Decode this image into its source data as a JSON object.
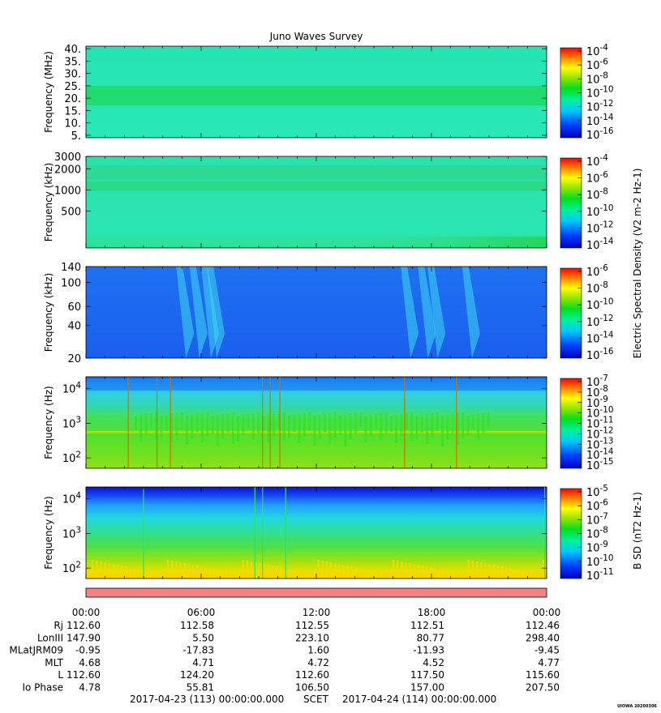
{
  "title": "Juno Waves Survey",
  "stamp": "UIOWA 20200306",
  "chart_data": [
    {
      "type": "heatmap",
      "panel": "MHz",
      "ylabel": "Frequency (MHz)",
      "yscale": "linear",
      "ylim": [
        4,
        41
      ],
      "yticks": [
        {
          "v": 5,
          "label": "5."
        },
        {
          "v": 10,
          "label": "10."
        },
        {
          "v": 15,
          "label": "15."
        },
        {
          "v": 20,
          "label": "20."
        },
        {
          "v": 25,
          "label": "25."
        },
        {
          "v": 30,
          "label": "30."
        },
        {
          "v": 35,
          "label": "35."
        },
        {
          "v": 40,
          "label": "40."
        }
      ],
      "xlim_hours": [
        0,
        24
      ],
      "colorbar": {
        "ticks": [
          "10-4",
          "10-6",
          "10-8",
          "10-10",
          "10-12",
          "10-14",
          "10-16"
        ],
        "exp_range": [
          -16.7,
          -3.8
        ],
        "label": ""
      },
      "base_color": "#25e6b0",
      "bands": [
        {
          "f": 21,
          "color": "#20d860",
          "width": 0.8
        }
      ],
      "spikes_hours": []
    },
    {
      "type": "heatmap",
      "panel": "kHz-high",
      "ylabel": "Frequency (kHz)",
      "yscale": "log",
      "ylim": [
        150,
        3000
      ],
      "yticks": [
        {
          "v": 500,
          "label": "500"
        },
        {
          "v": 1000,
          "label": "1000"
        },
        {
          "v": 2000,
          "label": "2000"
        },
        {
          "v": 3000,
          "label": "3000"
        }
      ],
      "xlim_hours": [
        0,
        24
      ],
      "colorbar": {
        "ticks": [
          "10-4",
          "10-6",
          "10-8",
          "10-10",
          "10-12",
          "10-14"
        ],
        "exp_range": [
          -15,
          -3.2
        ],
        "label": "Electric Spectral Density (V2 m-2 Hz-1)"
      },
      "base_color": "#28e6b2",
      "bands": [
        {
          "f": 2000,
          "color": "#2ed890",
          "width": 0.03
        },
        {
          "f": 1600,
          "color": "#2ed890",
          "width": 0.03
        },
        {
          "f": 1150,
          "color": "#28d880",
          "width": 0.04
        }
      ],
      "spikes_hours": []
    },
    {
      "type": "heatmap",
      "panel": "kHz-low",
      "ylabel": "Frequency (kHz)",
      "yscale": "log",
      "ylim": [
        20,
        140
      ],
      "yticks": [
        {
          "v": 20,
          "label": "20"
        },
        {
          "v": 40,
          "label": "40"
        },
        {
          "v": 60,
          "label": "60"
        },
        {
          "v": 100,
          "label": "100"
        },
        {
          "v": 140,
          "label": "140"
        }
      ],
      "xlim_hours": [
        0,
        24
      ],
      "colorbar": {
        "ticks": [
          "10-6",
          "10-8",
          "10-10",
          "10-12",
          "10-14",
          "10-16"
        ],
        "exp_range": [
          -16.7,
          -5.8
        ],
        "label": ""
      },
      "base_color": "#1e6af0",
      "bands": [],
      "emissions_hours": [
        4.7,
        5.4,
        6.0,
        6.3,
        16.4,
        17.3,
        17.8,
        19.6
      ],
      "spikes_hours": []
    },
    {
      "type": "heatmap",
      "panel": "Hz-E",
      "ylabel": "Frequency (Hz)",
      "yscale": "log",
      "ylim": [
        50,
        22000
      ],
      "yticks": [
        {
          "v": 100,
          "label": "10^2"
        },
        {
          "v": 1000,
          "label": "10^3"
        },
        {
          "v": 10000,
          "label": "10^4"
        }
      ],
      "xlim_hours": [
        0,
        24
      ],
      "colorbar": {
        "ticks": [
          "10-7",
          "10-8",
          "10-9",
          "10-10",
          "10-11",
          "10-12",
          "10-13",
          "10-14",
          "10-15"
        ],
        "exp_range": [
          -15,
          -6.8
        ],
        "label": ""
      },
      "base_color": "#3ee040",
      "bands": [
        {
          "f": 560,
          "color": "#b8e000",
          "width": 0.02
        }
      ],
      "spikes_hours": [
        2.2,
        3.7,
        4.4,
        9.2,
        9.6,
        10.1,
        16.6,
        19.3
      ]
    },
    {
      "type": "heatmap",
      "panel": "Hz-B",
      "ylabel": "Frequency (Hz)",
      "yscale": "log",
      "ylim": [
        50,
        22000
      ],
      "yticks": [
        {
          "v": 100,
          "label": "10^2"
        },
        {
          "v": 1000,
          "label": "10^3"
        },
        {
          "v": 10000,
          "label": "10^4"
        }
      ],
      "xlim_hours": [
        0,
        24
      ],
      "colorbar": {
        "ticks": [
          "10-5",
          "10-6",
          "10-7",
          "10-8",
          "10-9",
          "10-10",
          "10-11"
        ],
        "exp_range": [
          -11,
          -4.5
        ],
        "label": "B SD (nT2 Hz-1)"
      },
      "base_color": "#30c8e0",
      "bands": [],
      "spikes_hours": [
        3.0,
        8.8,
        9.2,
        10.4,
        23.9
      ]
    }
  ],
  "bar": {
    "color": "#f88080"
  },
  "time_axis": {
    "ticks": [
      "00:00",
      "06:00",
      "12:00",
      "18:00",
      "00:00"
    ],
    "rows": [
      {
        "label": "Rj",
        "values": [
          "112.60",
          "112.58",
          "112.55",
          "112.51",
          "112.46"
        ]
      },
      {
        "label": "LonIII",
        "values": [
          "147.90",
          "5.50",
          "223.10",
          "80.77",
          "298.40"
        ]
      },
      {
        "label": "MLatJRM09",
        "values": [
          "-0.95",
          "-17.83",
          "1.60",
          "-11.93",
          "-9.45"
        ]
      },
      {
        "label": "MLT",
        "values": [
          "4.68",
          "4.71",
          "4.72",
          "4.52",
          "4.77"
        ]
      },
      {
        "label": "L",
        "values": [
          "112.60",
          "124.20",
          "112.60",
          "117.50",
          "115.60"
        ]
      },
      {
        "label": "Io Phase",
        "values": [
          "4.78",
          "55.81",
          "106.50",
          "157.00",
          "207.50"
        ]
      }
    ],
    "start": "2017-04-23 (113) 00:00:00.000",
    "scet": "SCET",
    "end": "2017-04-24 (114) 00:00:00.000"
  }
}
